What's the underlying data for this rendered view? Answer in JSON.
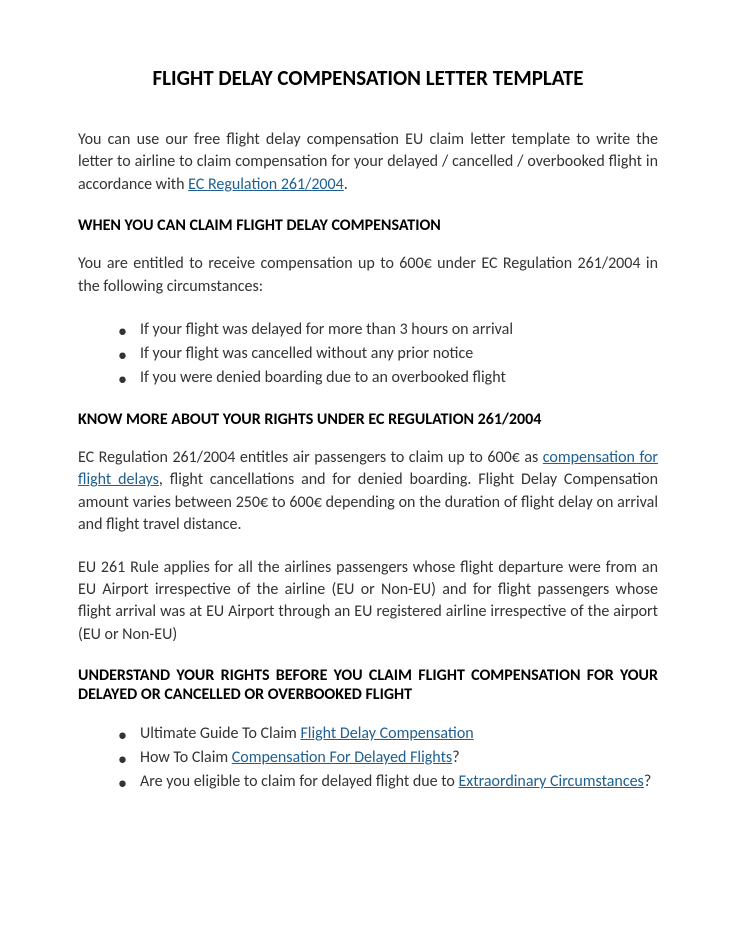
{
  "title": "FLIGHT DELAY COMPENSATION LETTER TEMPLATE",
  "intro": {
    "text1": "You can use our free flight delay compensation EU claim letter template to write the letter to airline to claim compensation for your delayed / cancelled / overbooked flight in accordance with ",
    "link": "EC Regulation 261/2004",
    "text2": "."
  },
  "section1": {
    "heading": "WHEN YOU CAN CLAIM FLIGHT DELAY COMPENSATION",
    "para": "You are entitled to receive compensation up to 600€ under EC Regulation 261/2004 in the following circumstances:",
    "items": [
      "If your flight was delayed for more than 3 hours on arrival",
      "If your flight was cancelled without any prior notice",
      "If you were denied boarding due to an overbooked flight"
    ]
  },
  "section2": {
    "heading": "KNOW MORE ABOUT YOUR RIGHTS UNDER EC REGULATION 261/2004",
    "para1_pre": "EC Regulation 261/2004 entitles air passengers to claim up to 600€ as ",
    "para1_link": "compensation for flight delays",
    "para1_post": ", flight cancellations and for denied boarding. Flight Delay Compensation amount varies between 250€ to 600€ depending on the duration of flight delay on arrival and flight travel distance.",
    "para2": "EU 261 Rule applies for all the airlines passengers whose flight departure were from an EU Airport irrespective of the airline (EU or Non-EU) and for flight passengers whose flight arrival was at EU Airport through an EU registered airline irrespective of the airport (EU or Non-EU)"
  },
  "section3": {
    "heading": "UNDERSTAND YOUR RIGHTS BEFORE YOU CLAIM FLIGHT COMPENSATION FOR YOUR DELAYED OR CANCELLED OR OVERBOOKED FLIGHT",
    "items": [
      {
        "pre": "Ultimate Guide To Claim ",
        "link": "Flight Delay Compensation",
        "post": ""
      },
      {
        "pre": "How To Claim ",
        "link": "Compensation For Delayed Flights",
        "post": "?"
      },
      {
        "pre": "Are you eligible to claim for delayed flight due to ",
        "link": "Extraordinary Circumstances",
        "post": "?"
      }
    ]
  },
  "colors": {
    "text": "#333333",
    "heading": "#000000",
    "link": "#1f6091",
    "background": "#ffffff"
  },
  "typography": {
    "title_fontsize": 21,
    "body_fontsize": 16,
    "font_family": "Calibri"
  }
}
